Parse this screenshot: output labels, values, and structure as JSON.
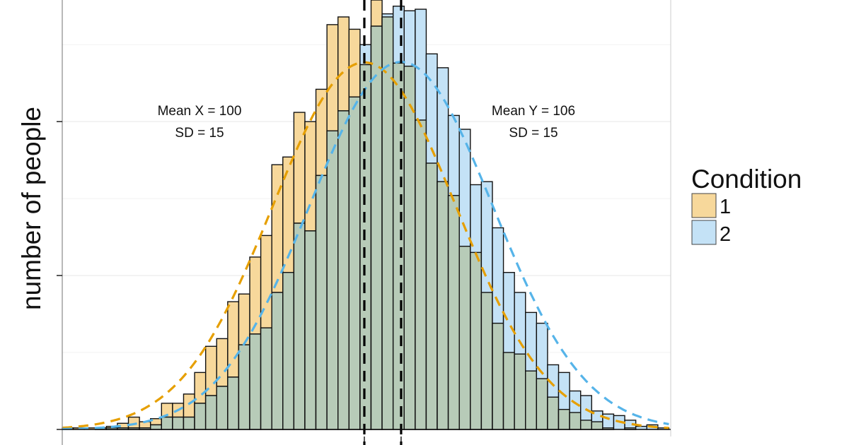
{
  "chart_data": {
    "type": "bar",
    "subtype": "overlaid histogram with normal density curves",
    "title": "",
    "xlabel": "",
    "ylabel": "number of people",
    "xlim": [
      50.7,
      150
    ],
    "ylim": [
      -4.6,
      279
    ],
    "grid": true,
    "x_ticks": [
      100,
      106
    ],
    "x_tick_labels_shown": false,
    "y_ticks": [
      0,
      100,
      200
    ],
    "y_tick_labels_shown": false,
    "bin_width": 1.8,
    "x": [
      51.6,
      53.4,
      55.2,
      57.0,
      58.8,
      60.6,
      62.4,
      64.2,
      66.0,
      67.8,
      69.6,
      71.4,
      73.2,
      75.0,
      76.8,
      78.6,
      80.4,
      82.2,
      84.0,
      85.8,
      87.6,
      89.4,
      91.2,
      93.0,
      94.8,
      96.6,
      98.4,
      100.2,
      102.0,
      103.8,
      105.6,
      107.4,
      109.2,
      111.0,
      112.8,
      114.6,
      116.4,
      118.2,
      120.0,
      121.8,
      123.6,
      125.4,
      127.2,
      129.0,
      130.8,
      132.6,
      134.4,
      136.2,
      138.0,
      139.8,
      141.6,
      143.4,
      145.2,
      147.0,
      148.8
    ],
    "series": [
      {
        "name": "1",
        "color": "#F7D89B",
        "curve_color": "#E69F00",
        "mean": 100,
        "sd": 15,
        "values": [
          1,
          1,
          1,
          1,
          2,
          4,
          8,
          5,
          7,
          17,
          17,
          23,
          37,
          54,
          59,
          83,
          88,
          112,
          126,
          172,
          177,
          206,
          200,
          221,
          263,
          268,
          260,
          237,
          282,
          268,
          238,
          236,
          201,
          173,
          161,
          152,
          119,
          115,
          89,
          69,
          50,
          49,
          38,
          33,
          21,
          13,
          11,
          6,
          5,
          1,
          0,
          1,
          0,
          0,
          0
        ]
      },
      {
        "name": "2",
        "color": "#C4E2F6",
        "curve_color": "#56B4E9",
        "mean": 106,
        "sd": 15,
        "values": [
          0,
          0,
          0,
          1,
          1,
          1,
          1,
          1,
          3,
          8,
          8,
          8,
          17,
          22,
          28,
          34,
          55,
          62,
          66,
          89,
          102,
          134,
          129,
          165,
          194,
          207,
          216,
          250,
          262,
          270,
          275,
          272,
          273,
          244,
          235,
          204,
          195,
          159,
          161,
          131,
          102,
          89,
          76,
          69,
          42,
          37,
          25,
          22,
          12,
          10,
          9,
          6,
          2,
          3,
          1
        ]
      }
    ],
    "overlap_color": "#B7CBB8",
    "reference_lines": [
      100,
      106
    ],
    "annotations": [
      {
        "line1": "Mean X = 100",
        "line2": "SD = 15"
      },
      {
        "line1": "Mean Y = 106",
        "line2": "SD = 15"
      }
    ],
    "legend": {
      "title": "Condition",
      "placement": "right",
      "items": [
        "1",
        "2"
      ]
    }
  }
}
